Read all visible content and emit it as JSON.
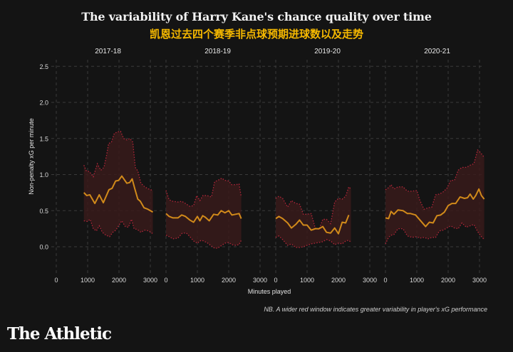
{
  "header": {
    "title": "The variability of Harry Kane's chance quality over time",
    "subtitle": "凯恩过去四个赛季非点球预期进球数以及走势"
  },
  "footer": {
    "note": "NB. A wider red window indicates greater variability in player's xG performance",
    "brand": "The Athletic"
  },
  "colors": {
    "background": "#141414",
    "mean_line": "#d18a1a",
    "band_fill": "#3a1a1a",
    "band_edge": "#b3263a",
    "grid": "#3a3a3a",
    "subtitle": "#f5b800"
  },
  "chart_data": {
    "type": "line",
    "title": "The variability of Harry Kane's chance quality over time",
    "xlabel": "Minutes played",
    "ylabel": "Non-penalty xG per minute",
    "ylim": [
      -0.4,
      2.6
    ],
    "xlim": [
      0,
      3500
    ],
    "yticks": [
      "0.0",
      "0.5",
      "1.0",
      "1.5",
      "2.0",
      "2.5"
    ],
    "ytick_values": [
      0,
      0.5,
      1.0,
      1.5,
      2.0,
      2.5
    ],
    "xticks": [
      "0",
      "1000",
      "2000",
      "3000"
    ],
    "xtick_values": [
      0,
      1000,
      2000,
      3000
    ],
    "grid": true,
    "panels": [
      {
        "season": "2017-18",
        "mean": {
          "x": [
            880,
            970,
            1070,
            1230,
            1370,
            1500,
            1680,
            1780,
            1890,
            1990,
            2090,
            2250,
            2340,
            2420,
            2500,
            2600,
            2680,
            2800,
            2920,
            3080
          ],
          "y": [
            0.75,
            0.71,
            0.72,
            0.6,
            0.72,
            0.61,
            0.79,
            0.81,
            0.91,
            0.92,
            0.98,
            0.88,
            0.89,
            0.94,
            0.81,
            0.66,
            0.63,
            0.54,
            0.52,
            0.48
          ]
        },
        "upper": {
          "x": [
            880,
            960,
            1060,
            1180,
            1310,
            1420,
            1520,
            1600,
            1670,
            1760,
            1850,
            1950,
            2050,
            2150,
            2250,
            2350,
            2440,
            2520,
            2600,
            2700,
            2820,
            2950,
            3080
          ],
          "y": [
            1.13,
            1.05,
            1.04,
            0.97,
            1.15,
            1.06,
            1.1,
            1.26,
            1.43,
            1.45,
            1.57,
            1.59,
            1.6,
            1.5,
            1.48,
            1.5,
            1.45,
            1.1,
            1.05,
            0.88,
            0.83,
            0.8,
            0.78
          ]
        },
        "lower": {
          "x": [
            880,
            980,
            1080,
            1180,
            1280,
            1370,
            1470,
            1580,
            1700,
            1800,
            1900,
            2000,
            2090,
            2200,
            2300,
            2400,
            2480,
            2580,
            2700,
            2820,
            2950,
            3080
          ],
          "y": [
            0.36,
            0.35,
            0.38,
            0.25,
            0.22,
            0.29,
            0.2,
            0.16,
            0.14,
            0.2,
            0.23,
            0.3,
            0.36,
            0.28,
            0.27,
            0.38,
            0.25,
            0.24,
            0.2,
            0.23,
            0.22,
            0.18
          ]
        }
      },
      {
        "season": "2018-19",
        "mean": {
          "x": [
            0,
            100,
            220,
            380,
            500,
            620,
            760,
            880,
            1000,
            1080,
            1170,
            1250,
            1380,
            1520,
            1650,
            1760,
            1880,
            2000,
            2100,
            2220,
            2330,
            2400
          ],
          "y": [
            0.46,
            0.42,
            0.4,
            0.4,
            0.44,
            0.42,
            0.37,
            0.34,
            0.42,
            0.36,
            0.43,
            0.41,
            0.36,
            0.45,
            0.44,
            0.5,
            0.47,
            0.5,
            0.44,
            0.45,
            0.46,
            0.39
          ]
        },
        "upper": {
          "x": [
            0,
            100,
            220,
            380,
            500,
            620,
            760,
            880,
            980,
            1080,
            1180,
            1300,
            1450,
            1550,
            1650,
            1780,
            1880,
            2000,
            2100,
            2220,
            2330,
            2400
          ],
          "y": [
            0.78,
            0.65,
            0.63,
            0.62,
            0.63,
            0.6,
            0.56,
            0.57,
            0.71,
            0.64,
            0.71,
            0.71,
            0.69,
            0.9,
            0.92,
            0.95,
            0.92,
            0.91,
            0.86,
            0.86,
            0.87,
            0.69
          ]
        },
        "lower": {
          "x": [
            0,
            100,
            220,
            380,
            520,
            650,
            760,
            880,
            1000,
            1120,
            1200,
            1330,
            1450,
            1550,
            1650,
            1780,
            1880,
            2000,
            2100,
            2220,
            2330,
            2400
          ],
          "y": [
            0.16,
            0.14,
            0.11,
            0.12,
            0.19,
            0.19,
            0.14,
            0.08,
            0.05,
            0.09,
            0.08,
            0.05,
            0.01,
            -0.02,
            -0.02,
            0.02,
            0.05,
            0.06,
            0.03,
            0.02,
            0.03,
            0.09
          ]
        }
      },
      {
        "season": "2019-20",
        "mean": {
          "x": [
            0,
            100,
            220,
            380,
            500,
            640,
            760,
            880,
            1000,
            1130,
            1260,
            1380,
            1500,
            1620,
            1750,
            1880,
            2000,
            2120,
            2230,
            2330
          ],
          "y": [
            0.39,
            0.42,
            0.39,
            0.33,
            0.26,
            0.31,
            0.37,
            0.3,
            0.3,
            0.23,
            0.25,
            0.25,
            0.28,
            0.2,
            0.19,
            0.26,
            0.18,
            0.34,
            0.33,
            0.44
          ]
        },
        "upper": {
          "x": [
            0,
            100,
            220,
            380,
            500,
            640,
            760,
            880,
            1000,
            1130,
            1260,
            1380,
            1500,
            1620,
            1750,
            1880,
            2000,
            2120,
            2230,
            2330,
            2400
          ],
          "y": [
            0.67,
            0.7,
            0.67,
            0.55,
            0.64,
            0.6,
            0.59,
            0.45,
            0.45,
            0.46,
            0.26,
            0.24,
            0.38,
            0.38,
            0.32,
            0.62,
            0.67,
            0.66,
            0.7,
            0.83,
            0.8
          ]
        },
        "lower": {
          "x": [
            0,
            100,
            220,
            380,
            500,
            640,
            760,
            880,
            1000,
            1130,
            1260,
            1380,
            1500,
            1620,
            1750,
            1880,
            2000,
            2120,
            2230,
            2330,
            2400
          ],
          "y": [
            0.13,
            0.15,
            0.1,
            0.02,
            0.04,
            -0.01,
            -0.01,
            0.0,
            0.02,
            0.04,
            0.05,
            0.06,
            0.07,
            0.1,
            0.08,
            0.03,
            0.05,
            0.04,
            0.08,
            0.09,
            0.06
          ]
        }
      },
      {
        "season": "2020-21",
        "mean": {
          "x": [
            0,
            100,
            180,
            270,
            400,
            560,
            700,
            800,
            960,
            1120,
            1280,
            1400,
            1520,
            1640,
            1760,
            1880,
            2000,
            2120,
            2240,
            2380,
            2520,
            2620,
            2700,
            2800,
            2880,
            2980,
            3060,
            3150
          ],
          "y": [
            0.4,
            0.39,
            0.49,
            0.45,
            0.51,
            0.5,
            0.46,
            0.46,
            0.44,
            0.36,
            0.28,
            0.34,
            0.33,
            0.43,
            0.44,
            0.48,
            0.57,
            0.6,
            0.6,
            0.69,
            0.67,
            0.68,
            0.73,
            0.66,
            0.71,
            0.8,
            0.71,
            0.66
          ]
        },
        "upper": {
          "x": [
            0,
            100,
            180,
            270,
            400,
            560,
            700,
            850,
            1000,
            1100,
            1230,
            1360,
            1480,
            1600,
            1720,
            1840,
            1960,
            2080,
            2200,
            2320,
            2440,
            2580,
            2700,
            2820,
            2940,
            3040,
            3150
          ],
          "y": [
            0.79,
            0.82,
            0.86,
            0.8,
            0.83,
            0.83,
            0.77,
            0.77,
            0.78,
            0.64,
            0.52,
            0.54,
            0.55,
            0.72,
            0.73,
            0.76,
            0.81,
            0.92,
            0.92,
            1.06,
            1.1,
            1.1,
            1.13,
            1.15,
            1.34,
            1.3,
            1.24
          ]
        },
        "lower": {
          "x": [
            0,
            100,
            180,
            270,
            400,
            560,
            700,
            850,
            1000,
            1100,
            1230,
            1360,
            1480,
            1600,
            1720,
            1840,
            1960,
            2080,
            2200,
            2320,
            2440,
            2580,
            2700,
            2820,
            2940,
            3040,
            3150
          ],
          "y": [
            0.04,
            0.13,
            0.16,
            0.17,
            0.25,
            0.25,
            0.15,
            0.13,
            0.14,
            0.12,
            0.13,
            0.11,
            0.13,
            0.13,
            0.22,
            0.23,
            0.26,
            0.29,
            0.26,
            0.25,
            0.33,
            0.27,
            0.29,
            0.31,
            0.21,
            0.15,
            0.1
          ]
        }
      }
    ]
  }
}
